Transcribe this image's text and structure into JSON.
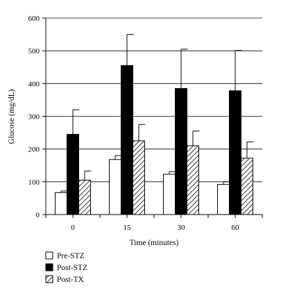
{
  "chart_data": {
    "type": "bar",
    "title": "",
    "xlabel": "Time (minutes)",
    "ylabel": "Glucose (mg/dL)",
    "ylim": [
      0,
      600
    ],
    "yticks": [
      "0",
      "100",
      "200",
      "300",
      "400",
      "500",
      "600"
    ],
    "grid": true,
    "legend_position": "bottom-left",
    "categories": [
      "0",
      "15",
      "30",
      "60"
    ],
    "series": [
      {
        "name": "Pre-STZ",
        "values": [
          67,
          168,
          123,
          92
        ],
        "errors": [
          5,
          12,
          8,
          8
        ],
        "fill": "white"
      },
      {
        "name": "Post-STZ",
        "values": [
          245,
          455,
          385,
          378
        ],
        "errors": [
          75,
          95,
          120,
          123
        ],
        "fill": "black"
      },
      {
        "name": "Post-TX",
        "values": [
          105,
          225,
          210,
          172
        ],
        "errors": [
          28,
          50,
          45,
          50
        ],
        "fill": "hatched"
      }
    ],
    "colors": {
      "bar_stroke": "#000000",
      "grid": "#000000",
      "post_stz_fill": "#000000",
      "pre_stz_fill": "#ffffff"
    }
  }
}
